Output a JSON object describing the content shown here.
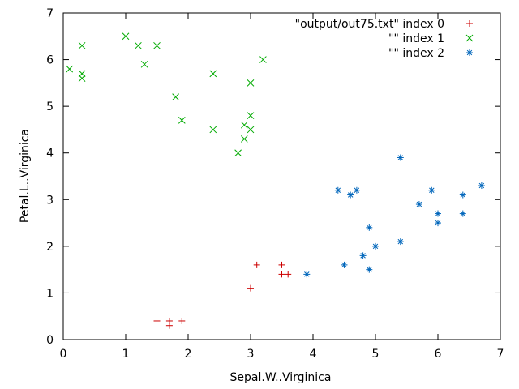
{
  "chart_data": {
    "type": "scatter",
    "xlabel": "Sepal.W..Virginica",
    "ylabel": "Petal.L..Virginica",
    "xlim": [
      0,
      7
    ],
    "ylim": [
      0,
      7
    ],
    "xticks": [
      0,
      1,
      2,
      3,
      4,
      5,
      6,
      7
    ],
    "yticks": [
      0,
      1,
      2,
      3,
      4,
      5,
      6,
      7
    ],
    "grid": false,
    "legend_position": "top-right",
    "series": [
      {
        "name": "\"output/out75.txt\" index 0",
        "marker": "plus",
        "color": "#cc0000",
        "points": [
          [
            1.5,
            0.4
          ],
          [
            1.7,
            0.4
          ],
          [
            1.7,
            0.3
          ],
          [
            1.9,
            0.4
          ],
          [
            3.0,
            1.1
          ],
          [
            3.1,
            1.6
          ],
          [
            3.5,
            1.6
          ],
          [
            3.5,
            1.4
          ],
          [
            3.6,
            1.4
          ]
        ]
      },
      {
        "name": "\"\" index 1",
        "marker": "cross",
        "color": "#00aa00",
        "points": [
          [
            0.1,
            5.8
          ],
          [
            0.3,
            6.3
          ],
          [
            0.3,
            5.7
          ],
          [
            0.3,
            5.6
          ],
          [
            1.0,
            6.5
          ],
          [
            1.2,
            6.3
          ],
          [
            1.3,
            5.9
          ],
          [
            1.5,
            6.3
          ],
          [
            1.8,
            5.2
          ],
          [
            1.9,
            4.7
          ],
          [
            2.4,
            5.7
          ],
          [
            2.4,
            4.5
          ],
          [
            2.8,
            4.0
          ],
          [
            2.9,
            4.6
          ],
          [
            2.9,
            4.3
          ],
          [
            3.0,
            5.5
          ],
          [
            3.0,
            4.8
          ],
          [
            3.0,
            4.5
          ],
          [
            3.2,
            6.0
          ]
        ]
      },
      {
        "name": "\"\" index 2",
        "marker": "star",
        "color": "#0066bb",
        "points": [
          [
            3.9,
            1.4
          ],
          [
            4.4,
            3.2
          ],
          [
            4.5,
            1.6
          ],
          [
            4.6,
            3.1
          ],
          [
            4.7,
            3.2
          ],
          [
            4.8,
            1.8
          ],
          [
            4.9,
            2.4
          ],
          [
            4.9,
            1.5
          ],
          [
            5.0,
            2.0
          ],
          [
            5.4,
            3.9
          ],
          [
            5.4,
            2.1
          ],
          [
            5.7,
            2.9
          ],
          [
            5.9,
            3.2
          ],
          [
            6.0,
            2.7
          ],
          [
            6.0,
            2.5
          ],
          [
            6.4,
            3.1
          ],
          [
            6.4,
            2.7
          ],
          [
            6.7,
            3.3
          ]
        ]
      }
    ]
  }
}
